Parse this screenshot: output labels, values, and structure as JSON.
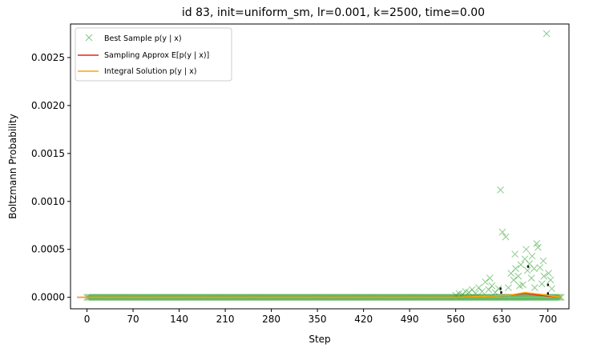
{
  "chart_data": {
    "type": "scatter",
    "title": "id 83, init=uniform_sm, lr=0.001, k=2500, time=0.00",
    "xlabel": "Step",
    "ylabel": "Boltzmann Probability",
    "xlim": [
      -25,
      732
    ],
    "ylim": [
      -0.00012,
      0.00285
    ],
    "xticks": [
      0,
      70,
      140,
      210,
      280,
      350,
      420,
      490,
      560,
      630,
      700
    ],
    "yticks": [
      0.0,
      0.0005,
      0.001,
      0.0015,
      0.002,
      0.0025
    ],
    "ytick_labels": [
      "0.0000",
      "0.0005",
      "0.0010",
      "0.0015",
      "0.0020",
      "0.0025"
    ],
    "grid": false,
    "legend_position": "top-left",
    "colors": {
      "best_sample": "#2ca02c",
      "sampling_approx": "#e8201e",
      "integral_solution": "#ffa500",
      "black_marks": "#000000"
    },
    "series": [
      {
        "name": "Best Sample p(y | x)",
        "style": "x-markers",
        "baseline": {
          "x_start": 0,
          "x_end": 720,
          "step": 2,
          "value": 0.0
        },
        "highlights": [
          {
            "x": 560,
            "y": 2e-05
          },
          {
            "x": 565,
            "y": 4e-05
          },
          {
            "x": 570,
            "y": 3e-05
          },
          {
            "x": 575,
            "y": 6e-05
          },
          {
            "x": 580,
            "y": 5e-05
          },
          {
            "x": 585,
            "y": 8e-05
          },
          {
            "x": 590,
            "y": 4e-05
          },
          {
            "x": 595,
            "y": 0.0001
          },
          {
            "x": 600,
            "y": 6e-05
          },
          {
            "x": 605,
            "y": 0.00016
          },
          {
            "x": 610,
            "y": 8e-05
          },
          {
            "x": 615,
            "y": 0.00012
          },
          {
            "x": 620,
            "y": 5e-05
          },
          {
            "x": 625,
            "y": 9e-05
          },
          {
            "x": 628,
            "y": 0.00112
          },
          {
            "x": 631,
            "y": 0.00068
          },
          {
            "x": 636,
            "y": 0.00063
          },
          {
            "x": 640,
            "y": 0.0001
          },
          {
            "x": 644,
            "y": 0.00025
          },
          {
            "x": 648,
            "y": 0.00018
          },
          {
            "x": 651,
            "y": 0.0003
          },
          {
            "x": 655,
            "y": 0.00022
          },
          {
            "x": 659,
            "y": 0.00034
          },
          {
            "x": 662,
            "y": 0.00013
          },
          {
            "x": 665,
            "y": 0.0004
          },
          {
            "x": 669,
            "y": 0.00028
          },
          {
            "x": 672,
            "y": 0.00035
          },
          {
            "x": 675,
            "y": 0.0002
          },
          {
            "x": 679,
            "y": 0.0003
          },
          {
            "x": 683,
            "y": 0.00056
          },
          {
            "x": 685,
            "y": 0.00052
          },
          {
            "x": 688,
            "y": 0.00031
          },
          {
            "x": 691,
            "y": 0.00014
          },
          {
            "x": 694,
            "y": 0.00022
          },
          {
            "x": 698,
            "y": 0.00275
          },
          {
            "x": 701,
            "y": 0.00025
          },
          {
            "x": 704,
            "y": 0.00018
          },
          {
            "x": 706,
            "y": 9e-05
          },
          {
            "x": 650,
            "y": 0.00045
          },
          {
            "x": 667,
            "y": 0.0005
          },
          {
            "x": 676,
            "y": 0.00043
          },
          {
            "x": 693,
            "y": 0.00038
          },
          {
            "x": 657,
            "y": 0.00012
          },
          {
            "x": 680,
            "y": 0.0001
          },
          {
            "x": 612,
            "y": 0.0002
          }
        ]
      },
      {
        "name": "Sampling Approx E[p(y | x)]",
        "style": "line",
        "points": [
          {
            "x": -15,
            "y": 0.0
          },
          {
            "x": 560,
            "y": 0.0
          },
          {
            "x": 600,
            "y": 1e-05
          },
          {
            "x": 640,
            "y": 2e-05
          },
          {
            "x": 665,
            "y": 4e-05
          },
          {
            "x": 690,
            "y": 2e-05
          },
          {
            "x": 720,
            "y": 0.0
          }
        ]
      },
      {
        "name": "Integral Solution p(y | x)",
        "style": "line",
        "points": [
          {
            "x": -15,
            "y": 0.0
          },
          {
            "x": 560,
            "y": 0.0
          },
          {
            "x": 600,
            "y": 1e-05
          },
          {
            "x": 640,
            "y": 2e-05
          },
          {
            "x": 665,
            "y": 5e-05
          },
          {
            "x": 690,
            "y": 3e-05
          },
          {
            "x": 720,
            "y": 0.0
          }
        ]
      }
    ],
    "black_marks": [
      {
        "x": 628,
        "y": 9e-05
      },
      {
        "x": 629,
        "y": 5e-05
      },
      {
        "x": 700,
        "y": 0.00013
      },
      {
        "x": 700,
        "y": 4e-05
      },
      {
        "x": 670,
        "y": 0.00032
      }
    ],
    "legend": [
      {
        "label": "Best Sample p(y | x)"
      },
      {
        "label": "Sampling Approx E[p(y | x)]"
      },
      {
        "label": "Integral Solution p(y | x)"
      }
    ]
  }
}
